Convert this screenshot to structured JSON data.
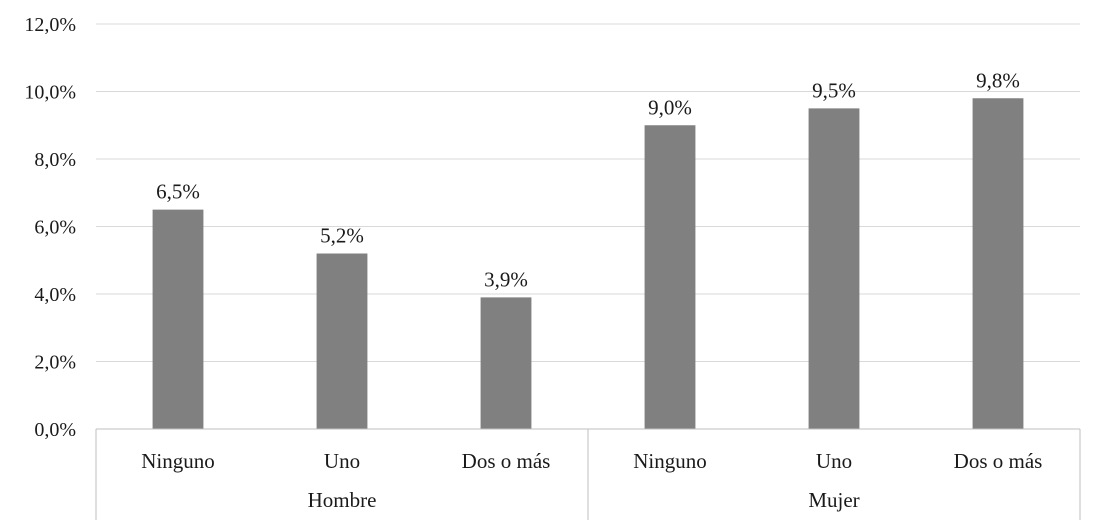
{
  "chart_data": {
    "type": "bar",
    "title": "",
    "xlabel": "",
    "ylabel": "",
    "ylim": [
      0,
      12
    ],
    "y_ticks": [
      "0,0%",
      "2,0%",
      "4,0%",
      "6,0%",
      "8,0%",
      "10,0%",
      "12,0%"
    ],
    "grid": true,
    "bar_color": "#808080",
    "groups": [
      {
        "name": "Hombre",
        "categories": [
          "Ninguno",
          "Uno",
          "Dos o más"
        ],
        "values": [
          6.5,
          5.2,
          3.9
        ],
        "labels": [
          "6,5%",
          "5,2%",
          "3,9%"
        ]
      },
      {
        "name": "Mujer",
        "categories": [
          "Ninguno",
          "Uno",
          "Dos o más"
        ],
        "values": [
          9.0,
          9.5,
          9.8
        ],
        "labels": [
          "9,0%",
          "9,5%",
          "9,8%"
        ]
      }
    ]
  }
}
